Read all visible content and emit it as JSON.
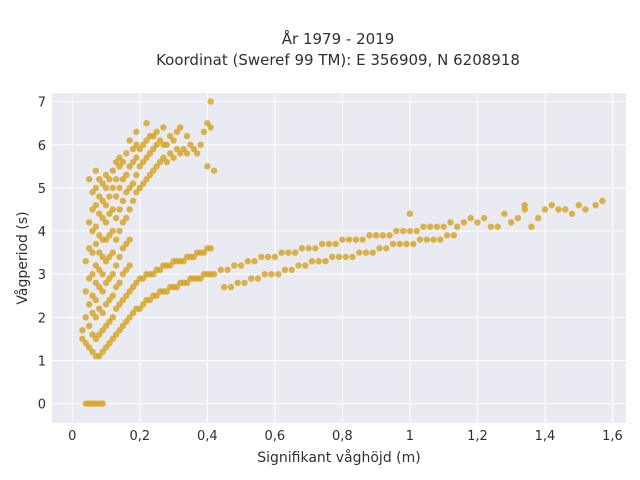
{
  "chart_data": {
    "type": "scatter",
    "title": [
      "År 1979 - 2019",
      "Koordinat (Sweref 99 TM): E 356909, N 6208918"
    ],
    "xlabel": "Signifikant våghöjd (m)",
    "ylabel": "Vågperiod (s)",
    "xlim": [
      -0.06,
      1.64
    ],
    "ylim": [
      -0.45,
      7.2
    ],
    "x_ticks": [
      0,
      0.2,
      0.4,
      0.6,
      0.8,
      1.0,
      1.2,
      1.4,
      1.6
    ],
    "x_tick_labels": [
      "0",
      "0,2",
      "0,4",
      "0,6",
      "0,8",
      "1",
      "1,2",
      "1,4",
      "1,6"
    ],
    "y_ticks": [
      0,
      1,
      2,
      3,
      4,
      5,
      6,
      7
    ],
    "y_tick_labels": [
      "0",
      "1",
      "2",
      "3",
      "4",
      "5",
      "6",
      "7"
    ],
    "grid": true,
    "legend": "none",
    "marker_color": "#D4A21D",
    "plot_bg": "#E9EAF2",
    "points": [
      [
        0.04,
        0.0
      ],
      [
        0.05,
        0.0
      ],
      [
        0.06,
        0.0
      ],
      [
        0.07,
        0.0
      ],
      [
        0.08,
        0.0
      ],
      [
        0.09,
        0.0
      ],
      [
        0.03,
        1.5
      ],
      [
        0.03,
        1.7
      ],
      [
        0.04,
        1.4
      ],
      [
        0.04,
        2.0
      ],
      [
        0.04,
        2.6
      ],
      [
        0.04,
        3.3
      ],
      [
        0.05,
        1.3
      ],
      [
        0.05,
        1.8
      ],
      [
        0.05,
        2.3
      ],
      [
        0.05,
        2.9
      ],
      [
        0.05,
        3.6
      ],
      [
        0.05,
        4.2
      ],
      [
        0.05,
        5.2
      ],
      [
        0.06,
        1.2
      ],
      [
        0.06,
        1.6
      ],
      [
        0.06,
        2.1
      ],
      [
        0.06,
        2.5
      ],
      [
        0.06,
        3.0
      ],
      [
        0.06,
        3.5
      ],
      [
        0.06,
        4.0
      ],
      [
        0.06,
        4.5
      ],
      [
        0.06,
        4.9
      ],
      [
        0.07,
        1.1
      ],
      [
        0.07,
        1.5
      ],
      [
        0.07,
        2.0
      ],
      [
        0.07,
        2.4
      ],
      [
        0.07,
        2.8
      ],
      [
        0.07,
        3.2
      ],
      [
        0.07,
        3.7
      ],
      [
        0.07,
        4.1
      ],
      [
        0.07,
        4.6
      ],
      [
        0.07,
        5.0
      ],
      [
        0.07,
        5.4
      ],
      [
        0.08,
        1.1
      ],
      [
        0.08,
        1.6
      ],
      [
        0.08,
        2.2
      ],
      [
        0.08,
        2.7
      ],
      [
        0.08,
        3.1
      ],
      [
        0.08,
        3.5
      ],
      [
        0.08,
        3.9
      ],
      [
        0.08,
        4.4
      ],
      [
        0.08,
        4.8
      ],
      [
        0.08,
        5.2
      ],
      [
        0.09,
        1.2
      ],
      [
        0.09,
        1.7
      ],
      [
        0.09,
        2.1
      ],
      [
        0.09,
        2.6
      ],
      [
        0.09,
        3.0
      ],
      [
        0.09,
        3.4
      ],
      [
        0.09,
        3.8
      ],
      [
        0.09,
        4.3
      ],
      [
        0.09,
        4.7
      ],
      [
        0.09,
        5.1
      ],
      [
        0.1,
        1.3
      ],
      [
        0.1,
        1.8
      ],
      [
        0.1,
        2.3
      ],
      [
        0.1,
        2.8
      ],
      [
        0.1,
        3.3
      ],
      [
        0.1,
        3.8
      ],
      [
        0.1,
        4.2
      ],
      [
        0.1,
        4.6
      ],
      [
        0.1,
        5.0
      ],
      [
        0.1,
        5.3
      ],
      [
        0.11,
        1.4
      ],
      [
        0.11,
        1.9
      ],
      [
        0.11,
        2.4
      ],
      [
        0.11,
        2.9
      ],
      [
        0.11,
        3.4
      ],
      [
        0.11,
        3.9
      ],
      [
        0.11,
        4.4
      ],
      [
        0.11,
        4.8
      ],
      [
        0.11,
        5.2
      ],
      [
        0.12,
        1.5
      ],
      [
        0.12,
        2.0
      ],
      [
        0.12,
        2.5
      ],
      [
        0.12,
        3.0
      ],
      [
        0.12,
        3.5
      ],
      [
        0.12,
        4.0
      ],
      [
        0.12,
        4.5
      ],
      [
        0.12,
        5.0
      ],
      [
        0.12,
        5.4
      ],
      [
        0.13,
        1.6
      ],
      [
        0.13,
        2.2
      ],
      [
        0.13,
        2.7
      ],
      [
        0.13,
        3.2
      ],
      [
        0.13,
        3.8
      ],
      [
        0.13,
        4.3
      ],
      [
        0.13,
        4.8
      ],
      [
        0.13,
        5.2
      ],
      [
        0.13,
        5.6
      ],
      [
        0.14,
        1.7
      ],
      [
        0.14,
        2.3
      ],
      [
        0.14,
        2.8
      ],
      [
        0.14,
        3.4
      ],
      [
        0.14,
        4.0
      ],
      [
        0.14,
        4.5
      ],
      [
        0.14,
        5.0
      ],
      [
        0.14,
        5.5
      ],
      [
        0.14,
        5.7
      ],
      [
        0.15,
        1.8
      ],
      [
        0.15,
        2.4
      ],
      [
        0.15,
        3.0
      ],
      [
        0.15,
        3.6
      ],
      [
        0.15,
        4.2
      ],
      [
        0.15,
        4.7
      ],
      [
        0.15,
        5.2
      ],
      [
        0.15,
        5.6
      ],
      [
        0.16,
        1.9
      ],
      [
        0.16,
        2.5
      ],
      [
        0.16,
        3.1
      ],
      [
        0.16,
        3.7
      ],
      [
        0.16,
        4.3
      ],
      [
        0.16,
        4.9
      ],
      [
        0.16,
        5.3
      ],
      [
        0.16,
        5.8
      ],
      [
        0.17,
        2.0
      ],
      [
        0.17,
        2.6
      ],
      [
        0.17,
        3.2
      ],
      [
        0.17,
        3.8
      ],
      [
        0.17,
        4.5
      ],
      [
        0.17,
        5.0
      ],
      [
        0.17,
        5.5
      ],
      [
        0.17,
        6.1
      ],
      [
        0.18,
        2.1
      ],
      [
        0.18,
        2.7
      ],
      [
        0.18,
        4.7
      ],
      [
        0.18,
        5.1
      ],
      [
        0.18,
        5.6
      ],
      [
        0.18,
        5.9
      ],
      [
        0.19,
        2.2
      ],
      [
        0.19,
        2.8
      ],
      [
        0.19,
        4.9
      ],
      [
        0.19,
        5.3
      ],
      [
        0.19,
        5.7
      ],
      [
        0.19,
        6.0
      ],
      [
        0.19,
        6.3
      ],
      [
        0.2,
        2.2
      ],
      [
        0.2,
        2.9
      ],
      [
        0.2,
        5.0
      ],
      [
        0.2,
        5.5
      ],
      [
        0.2,
        5.9
      ],
      [
        0.21,
        2.3
      ],
      [
        0.21,
        2.9
      ],
      [
        0.21,
        5.1
      ],
      [
        0.21,
        5.6
      ],
      [
        0.21,
        6.0
      ],
      [
        0.22,
        2.4
      ],
      [
        0.22,
        3.0
      ],
      [
        0.22,
        5.2
      ],
      [
        0.22,
        5.7
      ],
      [
        0.22,
        6.1
      ],
      [
        0.22,
        6.5
      ],
      [
        0.23,
        2.4
      ],
      [
        0.23,
        3.0
      ],
      [
        0.23,
        5.3
      ],
      [
        0.23,
        5.8
      ],
      [
        0.23,
        6.2
      ],
      [
        0.24,
        2.5
      ],
      [
        0.24,
        3.0
      ],
      [
        0.24,
        5.4
      ],
      [
        0.24,
        5.9
      ],
      [
        0.24,
        6.2
      ],
      [
        0.25,
        2.5
      ],
      [
        0.25,
        3.1
      ],
      [
        0.25,
        5.5
      ],
      [
        0.25,
        6.0
      ],
      [
        0.25,
        6.3
      ],
      [
        0.26,
        2.6
      ],
      [
        0.26,
        3.1
      ],
      [
        0.26,
        5.6
      ],
      [
        0.26,
        6.1
      ],
      [
        0.27,
        2.6
      ],
      [
        0.27,
        3.2
      ],
      [
        0.27,
        5.7
      ],
      [
        0.27,
        6.0
      ],
      [
        0.27,
        6.4
      ],
      [
        0.28,
        2.6
      ],
      [
        0.28,
        3.2
      ],
      [
        0.28,
        5.6
      ],
      [
        0.28,
        6.0
      ],
      [
        0.29,
        2.7
      ],
      [
        0.29,
        3.2
      ],
      [
        0.29,
        5.8
      ],
      [
        0.29,
        6.2
      ],
      [
        0.3,
        2.7
      ],
      [
        0.3,
        3.3
      ],
      [
        0.3,
        5.7
      ],
      [
        0.3,
        6.1
      ],
      [
        0.31,
        2.7
      ],
      [
        0.31,
        3.3
      ],
      [
        0.31,
        5.9
      ],
      [
        0.31,
        6.3
      ],
      [
        0.32,
        2.8
      ],
      [
        0.32,
        3.3
      ],
      [
        0.32,
        5.8
      ],
      [
        0.32,
        6.4
      ],
      [
        0.33,
        2.8
      ],
      [
        0.33,
        3.3
      ],
      [
        0.33,
        5.9
      ],
      [
        0.34,
        2.8
      ],
      [
        0.34,
        3.4
      ],
      [
        0.34,
        5.8
      ],
      [
        0.34,
        6.2
      ],
      [
        0.35,
        2.9
      ],
      [
        0.35,
        3.4
      ],
      [
        0.35,
        6.0
      ],
      [
        0.36,
        2.9
      ],
      [
        0.36,
        3.4
      ],
      [
        0.36,
        5.9
      ],
      [
        0.37,
        2.9
      ],
      [
        0.37,
        3.5
      ],
      [
        0.37,
        5.8
      ],
      [
        0.38,
        2.9
      ],
      [
        0.38,
        3.5
      ],
      [
        0.38,
        6.0
      ],
      [
        0.39,
        3.0
      ],
      [
        0.39,
        3.5
      ],
      [
        0.39,
        6.3
      ],
      [
        0.4,
        3.0
      ],
      [
        0.4,
        3.6
      ],
      [
        0.4,
        5.5
      ],
      [
        0.4,
        6.5
      ],
      [
        0.41,
        3.0
      ],
      [
        0.41,
        3.6
      ],
      [
        0.41,
        7.0
      ],
      [
        0.41,
        6.4
      ],
      [
        0.42,
        3.0
      ],
      [
        0.42,
        5.4
      ],
      [
        0.44,
        3.1
      ],
      [
        0.46,
        3.1
      ],
      [
        0.48,
        3.2
      ],
      [
        0.5,
        3.2
      ],
      [
        0.52,
        3.3
      ],
      [
        0.54,
        3.3
      ],
      [
        0.56,
        3.4
      ],
      [
        0.58,
        3.4
      ],
      [
        0.6,
        3.4
      ],
      [
        0.62,
        3.5
      ],
      [
        0.64,
        3.5
      ],
      [
        0.66,
        3.5
      ],
      [
        0.68,
        3.6
      ],
      [
        0.7,
        3.6
      ],
      [
        0.45,
        2.7
      ],
      [
        0.47,
        2.7
      ],
      [
        0.49,
        2.8
      ],
      [
        0.51,
        2.8
      ],
      [
        0.53,
        2.9
      ],
      [
        0.55,
        2.9
      ],
      [
        0.57,
        3.0
      ],
      [
        0.59,
        3.0
      ],
      [
        0.61,
        3.0
      ],
      [
        0.63,
        3.1
      ],
      [
        0.65,
        3.1
      ],
      [
        0.67,
        3.2
      ],
      [
        0.69,
        3.2
      ],
      [
        0.72,
        3.6
      ],
      [
        0.74,
        3.7
      ],
      [
        0.76,
        3.7
      ],
      [
        0.78,
        3.7
      ],
      [
        0.8,
        3.8
      ],
      [
        0.82,
        3.8
      ],
      [
        0.84,
        3.8
      ],
      [
        0.86,
        3.8
      ],
      [
        0.88,
        3.9
      ],
      [
        0.9,
        3.9
      ],
      [
        0.92,
        3.9
      ],
      [
        0.94,
        3.9
      ],
      [
        0.71,
        3.3
      ],
      [
        0.73,
        3.3
      ],
      [
        0.75,
        3.3
      ],
      [
        0.77,
        3.4
      ],
      [
        0.79,
        3.4
      ],
      [
        0.81,
        3.4
      ],
      [
        0.83,
        3.4
      ],
      [
        0.85,
        3.5
      ],
      [
        0.87,
        3.5
      ],
      [
        0.89,
        3.5
      ],
      [
        0.91,
        3.6
      ],
      [
        0.93,
        3.6
      ],
      [
        0.96,
        4.0
      ],
      [
        0.98,
        4.0
      ],
      [
        1.0,
        4.0
      ],
      [
        1.02,
        4.0
      ],
      [
        1.0,
        4.4
      ],
      [
        1.04,
        4.1
      ],
      [
        1.06,
        4.1
      ],
      [
        1.08,
        4.1
      ],
      [
        1.1,
        4.1
      ],
      [
        1.12,
        4.2
      ],
      [
        1.14,
        4.1
      ],
      [
        0.95,
        3.7
      ],
      [
        0.97,
        3.7
      ],
      [
        0.99,
        3.7
      ],
      [
        1.01,
        3.7
      ],
      [
        1.03,
        3.8
      ],
      [
        1.05,
        3.8
      ],
      [
        1.07,
        3.8
      ],
      [
        1.09,
        3.8
      ],
      [
        1.11,
        3.9
      ],
      [
        1.13,
        3.9
      ],
      [
        1.16,
        4.2
      ],
      [
        1.18,
        4.3
      ],
      [
        1.2,
        4.2
      ],
      [
        1.22,
        4.3
      ],
      [
        1.24,
        4.1
      ],
      [
        1.26,
        4.1
      ],
      [
        1.28,
        4.4
      ],
      [
        1.3,
        4.2
      ],
      [
        1.32,
        4.3
      ],
      [
        1.34,
        4.6
      ],
      [
        1.34,
        4.5
      ],
      [
        1.36,
        4.1
      ],
      [
        1.38,
        4.3
      ],
      [
        1.4,
        4.5
      ],
      [
        1.42,
        4.6
      ],
      [
        1.44,
        4.5
      ],
      [
        1.46,
        4.5
      ],
      [
        1.48,
        4.4
      ],
      [
        1.5,
        4.6
      ],
      [
        1.52,
        4.5
      ],
      [
        1.55,
        4.6
      ],
      [
        1.57,
        4.7
      ]
    ]
  }
}
